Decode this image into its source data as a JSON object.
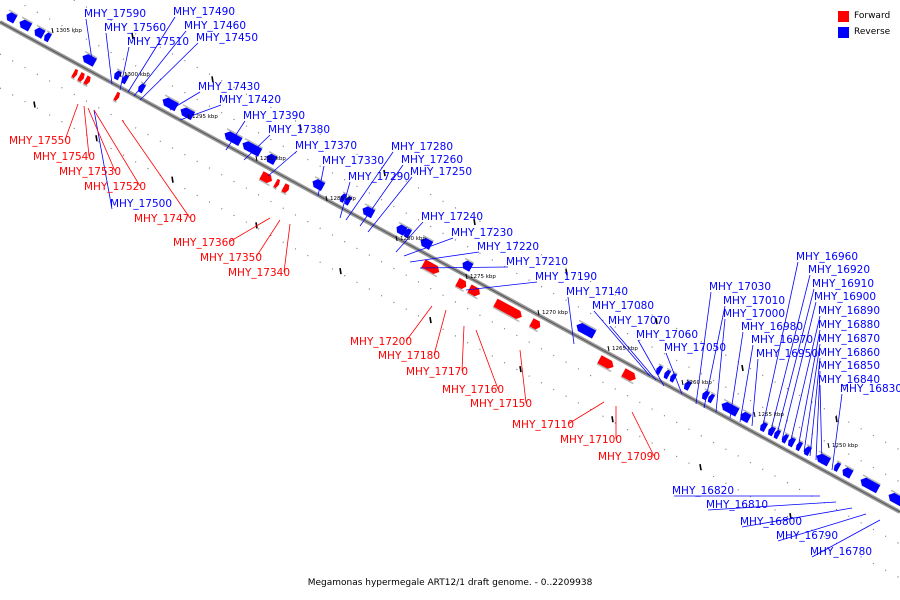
{
  "colors": {
    "forward": "#ff0000",
    "reverse": "#0000ff",
    "backbone": "#808080",
    "tick": "#000000"
  },
  "legend": [
    {
      "label": "Forward",
      "color": "#ff0000"
    },
    {
      "label": "Reverse",
      "color": "#0000ff"
    }
  ],
  "caption": "Megamonas hypermegale ART12/1 draft genome. - 0..2209938",
  "scale_labels": [
    "1305 kbp",
    "1300 kbp",
    "1295 kbp",
    "1290 kbp",
    "1285 kbp",
    "1280 kbp",
    "1275 kbp",
    "1270 kbp",
    "1265 kbp",
    "1260 kbp",
    "1255 kbp",
    "1250 kbp"
  ],
  "reverse_genes": [
    "MHY_17590",
    "MHY_17560",
    "MHY_17510",
    "MHY_17490",
    "MHY_17460",
    "MHY_17450",
    "MHY_17430",
    "MHY_17420",
    "MHY_17390",
    "MHY_17380",
    "MHY_17370",
    "MHY_17330",
    "MHY_17290",
    "MHY_17280",
    "MHY_17260",
    "MHY_17250",
    "MHY_17240",
    "MHY_17230",
    "MHY_17220",
    "MHY_17210",
    "MHY_17190",
    "MHY_17140",
    "MHY_17080",
    "MHY_17070",
    "MHY_17060",
    "MHY_17050",
    "MHY_17030",
    "MHY_17010",
    "MHY_17000",
    "MHY_16980",
    "MHY_16970",
    "MHY_16950",
    "MHY_16960",
    "MHY_16920",
    "MHY_16910",
    "MHY_16900",
    "MHY_16890",
    "MHY_16880",
    "MHY_16870",
    "MHY_16860",
    "MHY_16850",
    "MHY_16840",
    "MHY_16830",
    "MHY_16820",
    "MHY_16810",
    "MHY_16800",
    "MHY_16790",
    "MHY_16780",
    "MHY_17500"
  ],
  "forward_genes": [
    "MHY_17550",
    "MHY_17540",
    "MHY_17530",
    "MHY_17520",
    "MHY_17470",
    "MHY_17360",
    "MHY_17350",
    "MHY_17340",
    "MHY_17200",
    "MHY_17180",
    "MHY_17170",
    "MHY_17160",
    "MHY_17150",
    "MHY_17110",
    "MHY_17100",
    "MHY_17090"
  ]
}
